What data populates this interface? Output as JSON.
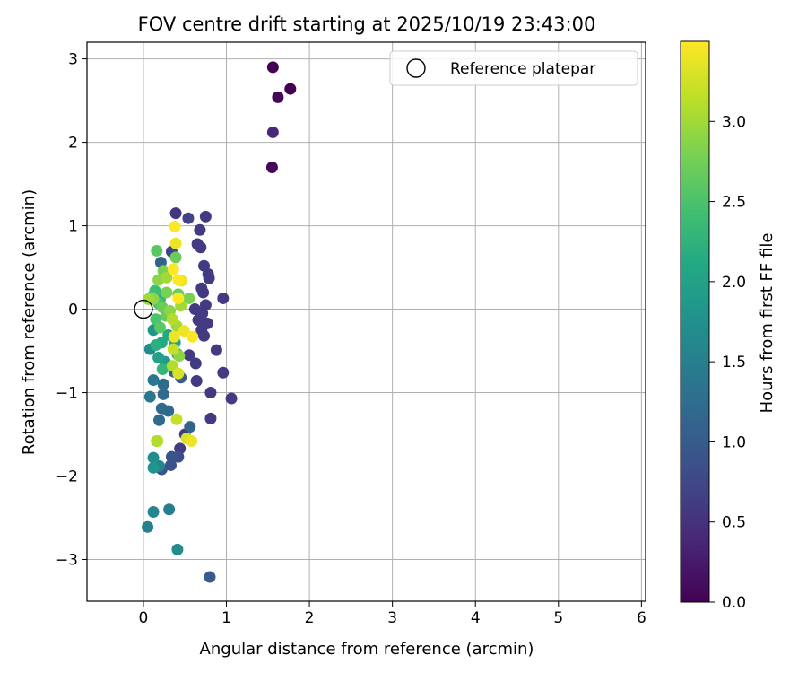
{
  "chart_data": {
    "type": "scatter",
    "title": "FOV centre drift starting at 2025/10/19 23:43:00",
    "xlabel": "Angular distance from reference (arcmin)",
    "ylabel": "Rotation from reference (arcmin)",
    "xlim": [
      -0.68,
      6.05
    ],
    "ylim": [
      -3.5,
      3.2
    ],
    "xticks": [
      0,
      1,
      2,
      3,
      4,
      5,
      6
    ],
    "yticks": [
      -3,
      -2,
      -1,
      0,
      1,
      2,
      3
    ],
    "grid": true,
    "legend": {
      "position": "top-right",
      "entries": [
        "Reference platepar"
      ]
    },
    "reference_marker": {
      "x": 0,
      "y": 0
    },
    "colorbar": {
      "label": "Hours from first FF file",
      "range": [
        0,
        3.5
      ],
      "ticks": [
        "0.0",
        "0.5",
        "1.0",
        "1.5",
        "2.0",
        "2.5",
        "3.0"
      ],
      "colormap": "viridis"
    },
    "points": [
      {
        "x": 1.56,
        "y": 2.9,
        "c": 0.0
      },
      {
        "x": 1.62,
        "y": 2.54,
        "c": 0.05
      },
      {
        "x": 1.77,
        "y": 2.64,
        "c": 0.0
      },
      {
        "x": 1.56,
        "y": 2.12,
        "c": 0.4
      },
      {
        "x": 1.55,
        "y": 1.7,
        "c": 0.05
      },
      {
        "x": 0.39,
        "y": 1.15,
        "c": 0.55
      },
      {
        "x": 0.54,
        "y": 1.09,
        "c": 0.7
      },
      {
        "x": 0.75,
        "y": 1.11,
        "c": 0.6
      },
      {
        "x": 0.68,
        "y": 0.95,
        "c": 0.6
      },
      {
        "x": 0.65,
        "y": 0.78,
        "c": 0.6
      },
      {
        "x": 0.69,
        "y": 0.74,
        "c": 0.6
      },
      {
        "x": 0.34,
        "y": 0.69,
        "c": 0.7
      },
      {
        "x": 0.73,
        "y": 0.52,
        "c": 0.6
      },
      {
        "x": 0.78,
        "y": 0.42,
        "c": 0.6
      },
      {
        "x": 0.79,
        "y": 0.37,
        "c": 0.6
      },
      {
        "x": 0.7,
        "y": 0.25,
        "c": 0.6
      },
      {
        "x": 0.72,
        "y": 0.2,
        "c": 0.6
      },
      {
        "x": 0.96,
        "y": 0.13,
        "c": 0.6
      },
      {
        "x": 0.75,
        "y": 0.05,
        "c": 0.6
      },
      {
        "x": 0.62,
        "y": 0.0,
        "c": 0.6
      },
      {
        "x": 0.71,
        "y": -0.05,
        "c": 0.6
      },
      {
        "x": 0.66,
        "y": -0.13,
        "c": 0.6
      },
      {
        "x": 0.77,
        "y": -0.17,
        "c": 0.6
      },
      {
        "x": 0.7,
        "y": -0.25,
        "c": 0.6
      },
      {
        "x": 0.73,
        "y": -0.32,
        "c": 0.6
      },
      {
        "x": 0.88,
        "y": -0.49,
        "c": 0.6
      },
      {
        "x": 0.55,
        "y": -0.55,
        "c": 0.6
      },
      {
        "x": 0.63,
        "y": -0.65,
        "c": 0.6
      },
      {
        "x": 0.96,
        "y": -0.76,
        "c": 0.6
      },
      {
        "x": 0.64,
        "y": -0.86,
        "c": 0.6
      },
      {
        "x": 0.81,
        "y": -1.0,
        "c": 0.6
      },
      {
        "x": 1.06,
        "y": -1.07,
        "c": 0.6
      },
      {
        "x": 0.81,
        "y": -1.31,
        "c": 0.6
      },
      {
        "x": 0.5,
        "y": -1.5,
        "c": 0.6
      },
      {
        "x": 0.44,
        "y": -1.67,
        "c": 0.6
      },
      {
        "x": 0.42,
        "y": -1.77,
        "c": 0.8
      },
      {
        "x": 0.34,
        "y": -1.77,
        "c": 0.9
      },
      {
        "x": 0.33,
        "y": -1.87,
        "c": 0.9
      },
      {
        "x": 0.22,
        "y": -1.92,
        "c": 0.9
      },
      {
        "x": 0.8,
        "y": -3.21,
        "c": 1.0
      },
      {
        "x": 0.21,
        "y": 0.56,
        "c": 1.1
      },
      {
        "x": 0.3,
        "y": -1.22,
        "c": 1.2
      },
      {
        "x": 0.19,
        "y": -1.33,
        "c": 1.2
      },
      {
        "x": 0.22,
        "y": -1.19,
        "c": 1.2
      },
      {
        "x": 0.24,
        "y": -1.02,
        "c": 1.2
      },
      {
        "x": 0.24,
        "y": -0.9,
        "c": 1.2
      },
      {
        "x": 0.08,
        "y": -1.05,
        "c": 1.4
      },
      {
        "x": 0.12,
        "y": -0.85,
        "c": 1.4
      },
      {
        "x": 0.45,
        "y": -0.82,
        "c": 1.0
      },
      {
        "x": 0.37,
        "y": -0.75,
        "c": 1.0
      },
      {
        "x": 0.56,
        "y": -1.41,
        "c": 1.1
      },
      {
        "x": 0.31,
        "y": -2.4,
        "c": 1.5
      },
      {
        "x": 0.12,
        "y": -2.43,
        "c": 1.6
      },
      {
        "x": 0.05,
        "y": -2.61,
        "c": 1.5
      },
      {
        "x": 0.41,
        "y": -2.88,
        "c": 1.7
      },
      {
        "x": 0.12,
        "y": -1.78,
        "c": 1.7
      },
      {
        "x": 0.12,
        "y": -1.9,
        "c": 1.8
      },
      {
        "x": 0.19,
        "y": -1.88,
        "c": 1.6
      },
      {
        "x": 0.08,
        "y": -0.48,
        "c": 1.7
      },
      {
        "x": 0.12,
        "y": -0.25,
        "c": 1.8
      },
      {
        "x": 0.18,
        "y": -0.58,
        "c": 2.0
      },
      {
        "x": 0.22,
        "y": -0.4,
        "c": 2.1
      },
      {
        "x": 0.3,
        "y": -0.31,
        "c": 2.1
      },
      {
        "x": 0.38,
        "y": -0.4,
        "c": 2.0
      },
      {
        "x": 0.41,
        "y": -0.54,
        "c": 1.9
      },
      {
        "x": 0.26,
        "y": -0.63,
        "c": 1.9
      },
      {
        "x": 0.23,
        "y": -0.72,
        "c": 2.3
      },
      {
        "x": 0.15,
        "y": -0.43,
        "c": 2.2
      },
      {
        "x": 0.2,
        "y": 0.12,
        "c": 2.3
      },
      {
        "x": 0.14,
        "y": 0.22,
        "c": 2.4
      },
      {
        "x": 0.1,
        "y": 0.15,
        "c": 2.5
      },
      {
        "x": 0.18,
        "y": 0.07,
        "c": 2.5
      },
      {
        "x": 0.15,
        "y": -0.12,
        "c": 2.5
      },
      {
        "x": 0.2,
        "y": -0.22,
        "c": 2.6
      },
      {
        "x": 0.27,
        "y": -0.08,
        "c": 2.7
      },
      {
        "x": 0.23,
        "y": 0.02,
        "c": 2.7
      },
      {
        "x": 0.28,
        "y": 0.2,
        "c": 2.8
      },
      {
        "x": 0.18,
        "y": 0.35,
        "c": 2.9
      },
      {
        "x": 0.24,
        "y": 0.46,
        "c": 2.8
      },
      {
        "x": 0.32,
        "y": -0.02,
        "c": 2.9
      },
      {
        "x": 0.35,
        "y": -0.12,
        "c": 3.1
      },
      {
        "x": 0.4,
        "y": -0.2,
        "c": 3.0
      },
      {
        "x": 0.28,
        "y": 0.38,
        "c": 3.0
      },
      {
        "x": 0.42,
        "y": 0.18,
        "c": 2.7
      },
      {
        "x": 0.45,
        "y": 0.04,
        "c": 3.0
      },
      {
        "x": 0.16,
        "y": 0.7,
        "c": 2.6
      },
      {
        "x": 0.39,
        "y": 0.62,
        "c": 2.7
      },
      {
        "x": 0.55,
        "y": 0.13,
        "c": 2.8
      },
      {
        "x": 0.06,
        "y": 0.12,
        "c": 3.0
      },
      {
        "x": 0.12,
        "y": 0.12,
        "c": 2.9
      },
      {
        "x": 0.17,
        "y": -1.58,
        "c": 3.1
      },
      {
        "x": 0.16,
        "y": -1.58,
        "c": 2.8
      },
      {
        "x": 0.4,
        "y": -1.32,
        "c": 3.2
      },
      {
        "x": 0.36,
        "y": -0.48,
        "c": 3.2
      },
      {
        "x": 0.43,
        "y": -0.56,
        "c": 2.9
      },
      {
        "x": 0.35,
        "y": -0.68,
        "c": 3.1
      },
      {
        "x": 0.42,
        "y": -0.77,
        "c": 3.3
      },
      {
        "x": 0.38,
        "y": 0.99,
        "c": 3.5
      },
      {
        "x": 0.39,
        "y": 0.79,
        "c": 3.4
      },
      {
        "x": 0.36,
        "y": 0.48,
        "c": 3.5
      },
      {
        "x": 0.42,
        "y": 0.35,
        "c": 3.5
      },
      {
        "x": 0.46,
        "y": 0.34,
        "c": 3.4
      },
      {
        "x": 0.42,
        "y": 0.13,
        "c": 3.5
      },
      {
        "x": 0.49,
        "y": -0.26,
        "c": 3.4
      },
      {
        "x": 0.59,
        "y": -0.33,
        "c": 3.5
      },
      {
        "x": 0.37,
        "y": -0.33,
        "c": 3.4
      },
      {
        "x": 0.52,
        "y": -1.55,
        "c": 3.3
      },
      {
        "x": 0.58,
        "y": -1.58,
        "c": 3.4
      }
    ]
  }
}
